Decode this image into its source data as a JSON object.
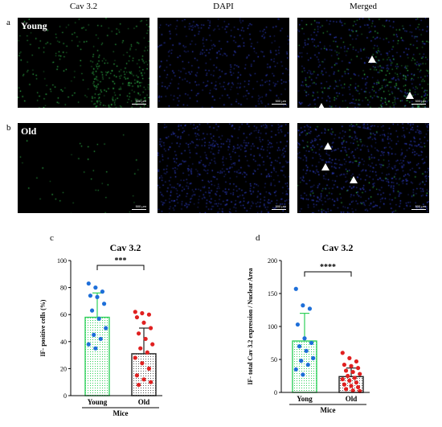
{
  "columns": [
    "Cav 3.2",
    "DAPI",
    "Merged"
  ],
  "rows": [
    {
      "letter": "a",
      "label": "Young",
      "scalebar": "500 μm"
    },
    {
      "letter": "b",
      "label": "Old",
      "scalebar": "500 μm"
    }
  ],
  "colors": {
    "green": "#2ec84a",
    "blue": "#2b4bff",
    "young_bar": "#2fd05a",
    "old_bar": "#222222",
    "young_dot": "#1e6fd9",
    "old_dot": "#e02020"
  },
  "chart_data": [
    {
      "panel_letter": "c",
      "type": "bar",
      "title": "Cav 3.2",
      "ylabel": "IF- positive cells (%)",
      "xlabel": "Mice",
      "categories": [
        "Young",
        "Old"
      ],
      "values": [
        58,
        31
      ],
      "errors": [
        18,
        19
      ],
      "ylim": [
        0,
        100
      ],
      "yticks": [
        0,
        20,
        40,
        60,
        80,
        100
      ],
      "significance": "***",
      "points": [
        [
          83,
          80,
          77,
          74,
          73,
          68,
          63,
          57,
          50,
          45,
          42,
          38,
          35
        ],
        [
          62,
          61,
          60,
          58,
          54,
          50,
          46,
          42,
          38,
          35,
          32,
          28,
          24,
          20,
          15,
          12,
          10,
          8
        ]
      ]
    },
    {
      "panel_letter": "d",
      "type": "bar",
      "title": "Cav 3.2",
      "ylabel": "IF- total Cav 3.2 expression / Nuclear Area",
      "xlabel": "Mice",
      "categories": [
        "Yong",
        "Old"
      ],
      "values": [
        78,
        24
      ],
      "errors": [
        42,
        13
      ],
      "ylim": [
        0,
        200
      ],
      "yticks": [
        0,
        50,
        100,
        150,
        200
      ],
      "significance": "****",
      "points": [
        [
          157,
          132,
          127,
          103,
          82,
          75,
          70,
          63,
          52,
          48,
          42,
          35,
          27
        ],
        [
          60,
          52,
          47,
          42,
          40,
          37,
          33,
          31,
          28,
          25,
          22,
          20,
          18,
          15,
          12,
          10,
          8,
          5,
          3,
          2
        ]
      ]
    }
  ]
}
